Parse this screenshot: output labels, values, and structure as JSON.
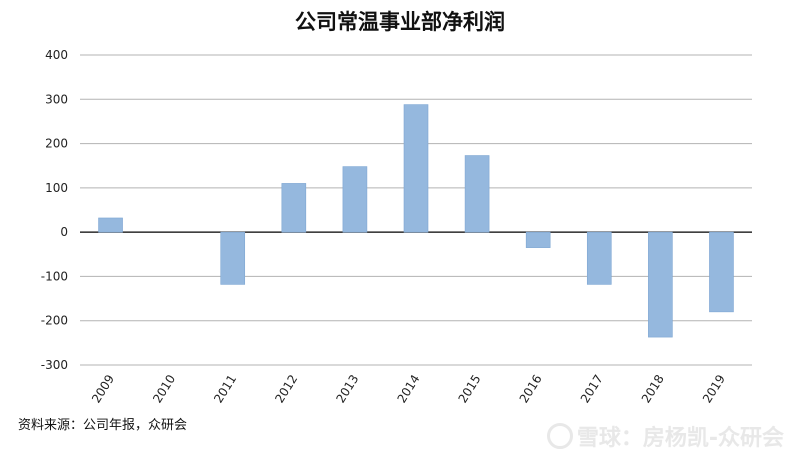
{
  "chart_data": {
    "type": "bar",
    "title": "公司常温事业部净利润",
    "categories": [
      "2009",
      "2010",
      "2011",
      "2012",
      "2013",
      "2014",
      "2015",
      "2016",
      "2017",
      "2018",
      "2019"
    ],
    "values": [
      32,
      0,
      -118,
      110,
      148,
      288,
      173,
      -35,
      -118,
      -237,
      -180
    ],
    "ylim": [
      -300,
      400
    ],
    "yticks": [
      400,
      300,
      200,
      100,
      0,
      -100,
      -200,
      -300
    ],
    "grid": true,
    "bar_color": "#95b8de",
    "bar_edge_color": "#7ea6d2"
  },
  "source": "资料来源：公司年报，众研会",
  "watermark": "雪球：房杨凯-众研会",
  "watermark_icon": "snowball-logo-icon"
}
